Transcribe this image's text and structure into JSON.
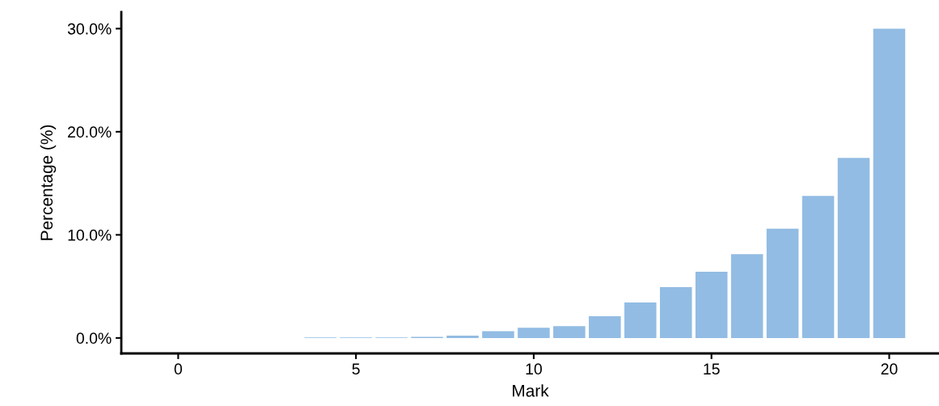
{
  "chart_data": {
    "type": "bar",
    "xlabel": "Mark",
    "ylabel": "Percentage (%)",
    "x": [
      4,
      5,
      6,
      7,
      8,
      9,
      10,
      11,
      12,
      13,
      14,
      15,
      16,
      17,
      18,
      19,
      20
    ],
    "values": [
      0.05,
      0.05,
      0.05,
      0.1,
      0.23,
      0.65,
      1.0,
      1.15,
      2.1,
      3.45,
      4.93,
      6.42,
      8.12,
      10.6,
      13.78,
      17.46,
      30.0
    ],
    "color": "#92bce3",
    "xlim": [
      -1.6,
      21.4
    ],
    "xticks": [
      0,
      5,
      10,
      15,
      20
    ],
    "ylim": [
      -1.5,
      31.6
    ],
    "yticks": [
      {
        "value": 0,
        "label": "0.0%"
      },
      {
        "value": 10,
        "label": "10.0%"
      },
      {
        "value": 20,
        "label": "20.0%"
      },
      {
        "value": 30,
        "label": "30.0%"
      }
    ],
    "grid": false,
    "legend": false
  }
}
